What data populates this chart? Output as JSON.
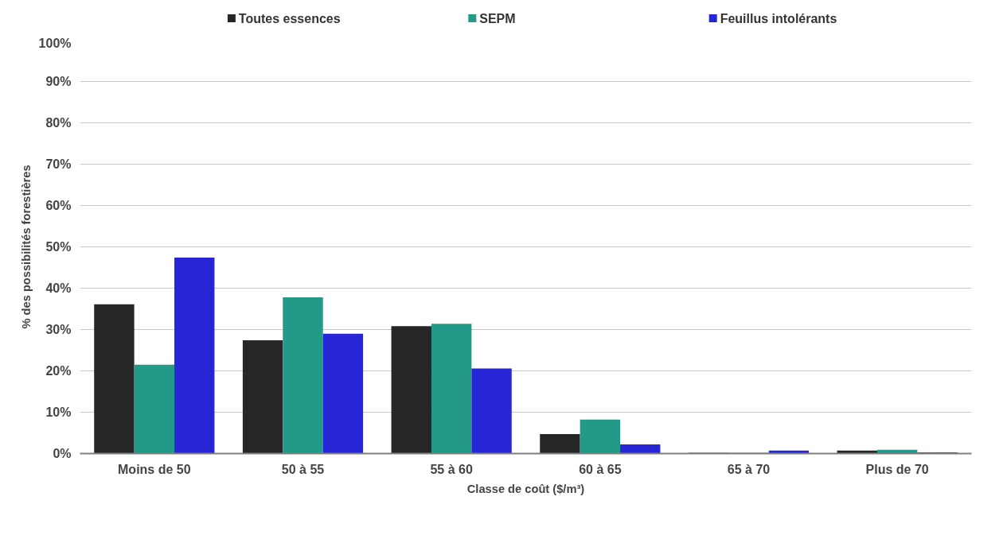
{
  "chart_data": {
    "type": "bar",
    "xlabel": "Classe de coût ($/m³)",
    "ylabel": "% des possibilités forestières",
    "categories": [
      "Moins de 50",
      "50 à 55",
      "55 à 60",
      "60 à 65",
      "65 à 70",
      "Plus de 70"
    ],
    "series": [
      {
        "name": "Toutes essences",
        "color": "#262626",
        "values": [
          36.1,
          27.4,
          30.8,
          4.7,
          0.2,
          0.7
        ]
      },
      {
        "name": "SEPM",
        "color": "#229a87",
        "values": [
          21.5,
          37.8,
          31.4,
          8.2,
          0.2,
          0.9
        ]
      },
      {
        "name": "Feuillus intolérants",
        "color": "#2626d6",
        "values": [
          47.4,
          29.0,
          20.6,
          2.2,
          0.7,
          0.3
        ]
      }
    ],
    "ylim": [
      0,
      100
    ],
    "yticks": [
      {
        "value": 0,
        "label": "0%"
      },
      {
        "value": 10,
        "label": "10%"
      },
      {
        "value": 20,
        "label": "20%"
      },
      {
        "value": 30,
        "label": "30%"
      },
      {
        "value": 40,
        "label": "40%"
      },
      {
        "value": 50,
        "label": "50%"
      },
      {
        "value": 60,
        "label": "60%"
      },
      {
        "value": 70,
        "label": "70%"
      },
      {
        "value": 80,
        "label": "80%"
      },
      {
        "value": 90,
        "label": "90%"
      },
      {
        "value": 100,
        "label": "100%"
      }
    ],
    "grid": "y",
    "legend": "top"
  }
}
